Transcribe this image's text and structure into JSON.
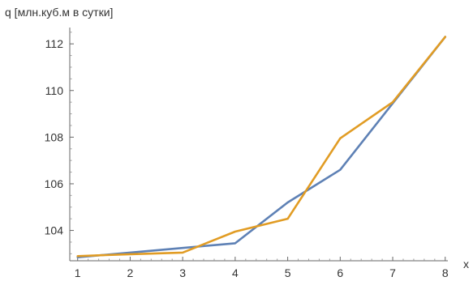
{
  "chart_data": {
    "type": "line",
    "title": "",
    "xlabel": "x",
    "ylabel": "q [млн.куб.м в сутки]",
    "xlim": [
      0.85,
      8.05
    ],
    "ylim": [
      102.7,
      112.7
    ],
    "x_ticks": [
      1,
      2,
      3,
      4,
      5,
      6,
      7,
      8
    ],
    "y_ticks": [
      104,
      106,
      108,
      110,
      112
    ],
    "grid": false,
    "legend": "none",
    "x": [
      1,
      2,
      3,
      4,
      5,
      6,
      7,
      8
    ],
    "series": [
      {
        "color": "#5E81B5",
        "values": [
          102.85,
          103.05,
          103.25,
          103.45,
          105.2,
          106.6,
          109.45,
          112.3
        ]
      },
      {
        "color": "#E19C24",
        "values": [
          102.9,
          102.98,
          103.05,
          103.95,
          104.5,
          107.95,
          109.5,
          112.3
        ]
      }
    ]
  }
}
